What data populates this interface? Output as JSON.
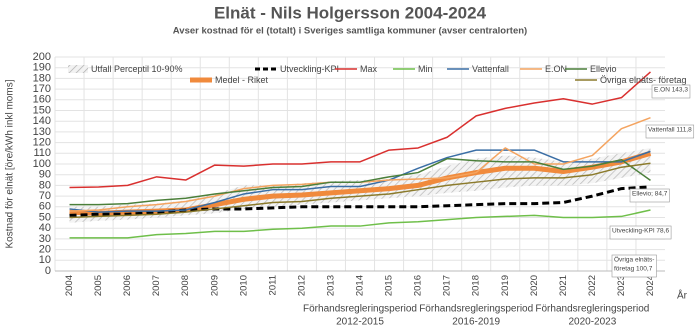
{
  "chart_data": {
    "type": "line",
    "title": "Elnät - Nils Holgersson 2004-2024",
    "subtitle": "Avser kostnad för el (totalt) i Sveriges samtliga kommuner (avser centralorten)",
    "y_label": "Kostnad för elnät  [öre/kWh inkl moms]",
    "x_label": "År",
    "categories": [
      "2004",
      "2005",
      "2006",
      "2007",
      "2008",
      "2009",
      "2010",
      "2011",
      "2012",
      "2013",
      "2014",
      "2015",
      "2016",
      "2017",
      "2018",
      "2019",
      "2020",
      "2021",
      "2022",
      "2023",
      "2024"
    ],
    "ylim": [
      0,
      200
    ],
    "yticks": [
      0,
      10,
      20,
      30,
      40,
      50,
      60,
      70,
      80,
      90,
      100,
      110,
      120,
      130,
      140,
      150,
      160,
      170,
      180,
      190,
      200
    ],
    "grid": true,
    "band": {
      "name": "Utfall Perceptil 10-90%",
      "color": "#b0b0b0",
      "low": [
        45,
        47,
        48,
        50,
        52,
        54,
        58,
        60,
        62,
        64,
        66,
        68,
        70,
        73,
        75,
        78,
        80,
        80,
        82,
        87,
        92
      ],
      "high": [
        60,
        60,
        62,
        63,
        66,
        72,
        80,
        80,
        82,
        84,
        85,
        86,
        90,
        98,
        105,
        108,
        106,
        102,
        105,
        110,
        115
      ]
    },
    "series": [
      {
        "name": "Medel - Riket",
        "color": "#f08a3c",
        "width": 5,
        "values": [
          55,
          54,
          55,
          56,
          57,
          62,
          67,
          70,
          71,
          73,
          75,
          77,
          80,
          87,
          92,
          96,
          96,
          93,
          97,
          102,
          110
        ]
      },
      {
        "name": "Utveckling-KPI",
        "color": "#000000",
        "width": 3,
        "dash": true,
        "values": [
          52,
          53,
          53,
          55,
          57,
          58,
          58,
          59,
          60,
          60,
          60,
          60,
          60,
          61,
          62,
          63,
          63,
          64,
          70,
          77,
          78.6
        ]
      },
      {
        "name": "Max",
        "color": "#d9302f",
        "width": 1.5,
        "values": [
          78,
          78.5,
          80,
          88,
          85,
          99,
          98,
          100,
          100,
          102,
          102,
          113,
          115,
          125,
          145,
          152,
          157,
          161,
          156,
          162,
          186
        ]
      },
      {
        "name": "Min",
        "color": "#6fbf4a",
        "width": 1.5,
        "values": [
          31,
          31,
          31,
          34,
          35,
          37,
          37,
          39,
          40,
          42,
          42,
          45,
          46,
          48,
          50,
          51,
          52,
          50,
          50,
          51,
          57
        ]
      },
      {
        "name": "Vattenfall",
        "color": "#3a6ea5",
        "width": 1.5,
        "values": [
          58,
          55,
          56,
          56,
          57,
          64,
          72,
          76,
          76,
          79,
          79,
          85,
          96,
          106,
          113,
          113,
          113,
          102,
          102,
          102,
          111.8
        ]
      },
      {
        "name": "E.ON",
        "color": "#f4a460",
        "width": 1.5,
        "values": [
          56,
          57,
          60,
          62,
          65,
          70,
          77,
          80,
          81,
          83,
          83,
          85,
          86,
          87,
          92,
          115,
          100,
          100,
          108,
          133,
          143.3
        ]
      },
      {
        "name": "Ellevio",
        "color": "#4b7f3a",
        "width": 1.5,
        "values": [
          62,
          62,
          63,
          66,
          68,
          72,
          75,
          78,
          79,
          83,
          83,
          88,
          92,
          105,
          103,
          102,
          102,
          95,
          98,
          104,
          84.7
        ]
      },
      {
        "name": "Övriga elnäts- företag",
        "color": "#8b7a2b",
        "width": 1.5,
        "values": [
          50,
          51,
          52,
          53,
          55,
          58,
          61,
          64,
          65,
          68,
          70,
          72,
          76,
          80,
          83,
          86,
          87,
          87,
          90,
          97,
          100.7
        ]
      }
    ],
    "annotations": [
      {
        "lines": [
          "E.ON 143,3"
        ]
      },
      {
        "lines": [
          "Vattenfall 111,8"
        ]
      },
      {
        "lines": [
          "Ellevio; 84,7"
        ]
      },
      {
        "lines": [
          "Utveckling-KPI 78,6"
        ]
      },
      {
        "lines": [
          "Övriga elnäts-",
          "företag 100,7"
        ]
      }
    ],
    "periods": [
      {
        "lines": [
          "Förhandsregleringsperiod",
          "2012-2015"
        ]
      },
      {
        "lines": [
          "Förhandsregleringsperiod",
          "2016-2019"
        ]
      },
      {
        "lines": [
          "Förhandsregleringsperiod",
          "2020-2023"
        ]
      }
    ]
  }
}
